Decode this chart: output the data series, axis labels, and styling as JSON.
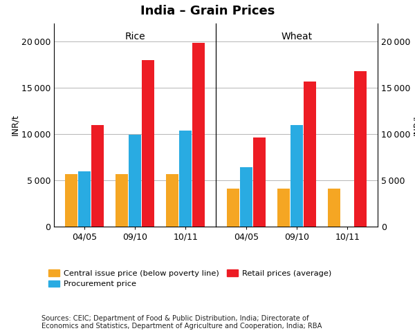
{
  "title": "India – Grain Prices",
  "ylabel": "INR/t",
  "panel_labels": [
    "Rice",
    "Wheat"
  ],
  "x_labels": [
    "04/05",
    "09/10",
    "10/11"
  ],
  "rice": {
    "central_issue": [
      5700,
      5700,
      5700
    ],
    "procurement": [
      6000,
      9900,
      10400
    ],
    "retail": [
      11000,
      18000,
      19900
    ]
  },
  "wheat": {
    "central_issue": [
      4100,
      4100,
      4100
    ],
    "procurement": [
      6400,
      11000,
      0
    ],
    "retail": [
      9600,
      15700,
      16800
    ]
  },
  "colors": {
    "central_issue": "#F5A623",
    "procurement": "#29ABE2",
    "retail": "#ED1C24"
  },
  "legend_labels": [
    "Central issue price (below poverty line)",
    "Procurement price",
    "Retail prices (average)"
  ],
  "source_text": "Sources: CEIC; Department of Food & Public Distribution, India; Directorate of\nEconomics and Statistics, Department of Agriculture and Cooperation, India; RBA",
  "ylim": [
    0,
    22000
  ],
  "yticks": [
    0,
    5000,
    10000,
    15000,
    20000
  ],
  "background_color": "#FFFFFF",
  "grid_color": "#AAAAAA"
}
